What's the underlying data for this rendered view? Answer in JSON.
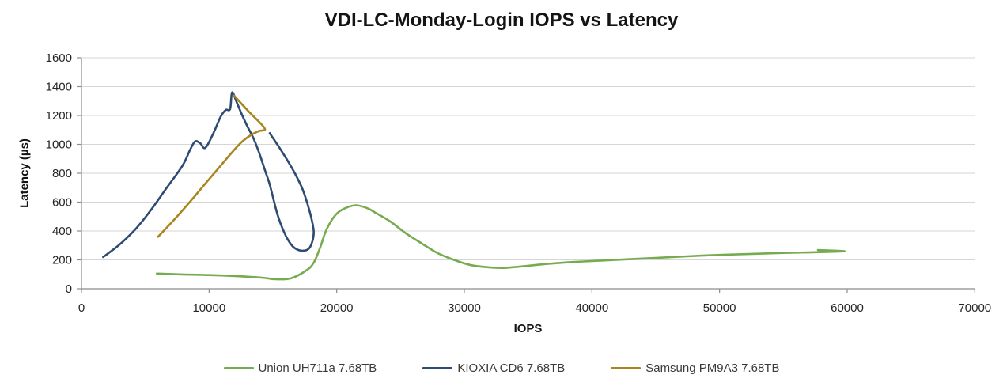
{
  "chart_data": {
    "type": "line",
    "title": "VDI-LC-Monday-Login IOPS vs Latency",
    "xlabel": "IOPS",
    "ylabel": "Latency (µs)",
    "xlim": [
      0,
      70000
    ],
    "ylim": [
      0,
      1600
    ],
    "x_ticks": [
      0,
      10000,
      20000,
      30000,
      40000,
      50000,
      60000,
      70000
    ],
    "y_ticks": [
      0,
      200,
      400,
      600,
      800,
      1000,
      1200,
      1400,
      1600
    ],
    "grid": "horizontal-only",
    "legend_position": "bottom",
    "colors": {
      "gridline": "#d6d6d6",
      "axis": "#8c8c8c",
      "tick_label": "#262626",
      "title_text": "#141414"
    },
    "series": [
      {
        "name": "Union UH711a 7.68TB",
        "color": "#76ac4f",
        "points": [
          [
            5900,
            105
          ],
          [
            7900,
            99
          ],
          [
            11000,
            92
          ],
          [
            14000,
            78
          ],
          [
            15200,
            66
          ],
          [
            16400,
            72
          ],
          [
            17600,
            126
          ],
          [
            18200,
            180
          ],
          [
            18700,
            285
          ],
          [
            19200,
            410
          ],
          [
            19900,
            510
          ],
          [
            20600,
            555
          ],
          [
            21500,
            578
          ],
          [
            22400,
            558
          ],
          [
            23000,
            528
          ],
          [
            24200,
            466
          ],
          [
            25400,
            385
          ],
          [
            26700,
            312
          ],
          [
            27900,
            247
          ],
          [
            29100,
            203
          ],
          [
            30400,
            166
          ],
          [
            31700,
            150
          ],
          [
            33000,
            144
          ],
          [
            34400,
            154
          ],
          [
            36500,
            172
          ],
          [
            38500,
            185
          ],
          [
            40500,
            194
          ],
          [
            43000,
            205
          ],
          [
            46000,
            218
          ],
          [
            49000,
            231
          ],
          [
            52000,
            240
          ],
          [
            55000,
            248
          ],
          [
            57500,
            253
          ],
          [
            59800,
            260
          ],
          [
            57700,
            268
          ]
        ]
      },
      {
        "name": "KIOXIA CD6 7.68TB",
        "color": "#2e4b71",
        "points": [
          [
            1700,
            220
          ],
          [
            2900,
            300
          ],
          [
            4200,
            410
          ],
          [
            5400,
            540
          ],
          [
            6600,
            690
          ],
          [
            7900,
            850
          ],
          [
            8500,
            960
          ],
          [
            8900,
            1020
          ],
          [
            9300,
            1008
          ],
          [
            9700,
            976
          ],
          [
            10300,
            1070
          ],
          [
            10900,
            1190
          ],
          [
            11300,
            1238
          ],
          [
            11650,
            1245
          ],
          [
            11800,
            1360
          ],
          [
            12150,
            1295
          ],
          [
            12550,
            1210
          ],
          [
            13000,
            1125
          ],
          [
            13500,
            1038
          ],
          [
            13950,
            935
          ],
          [
            14350,
            828
          ],
          [
            14750,
            722
          ],
          [
            15050,
            618
          ],
          [
            15350,
            518
          ],
          [
            15650,
            440
          ],
          [
            16100,
            352
          ],
          [
            16600,
            290
          ],
          [
            17200,
            264
          ],
          [
            17800,
            276
          ],
          [
            18100,
            330
          ],
          [
            18200,
            400
          ],
          [
            18000,
            495
          ],
          [
            17700,
            590
          ],
          [
            17300,
            695
          ],
          [
            16750,
            795
          ],
          [
            16150,
            888
          ],
          [
            15450,
            985
          ],
          [
            14750,
            1078
          ]
        ]
      },
      {
        "name": "Samsung PM9A3 7.68TB",
        "color": "#a8861d",
        "points": [
          [
            6000,
            360
          ],
          [
            7300,
            482
          ],
          [
            8600,
            612
          ],
          [
            9800,
            738
          ],
          [
            11000,
            862
          ],
          [
            11700,
            935
          ],
          [
            12500,
            1012
          ],
          [
            13300,
            1066
          ],
          [
            13900,
            1092
          ],
          [
            14350,
            1112
          ],
          [
            13100,
            1228
          ],
          [
            11950,
            1338
          ]
        ]
      }
    ]
  }
}
